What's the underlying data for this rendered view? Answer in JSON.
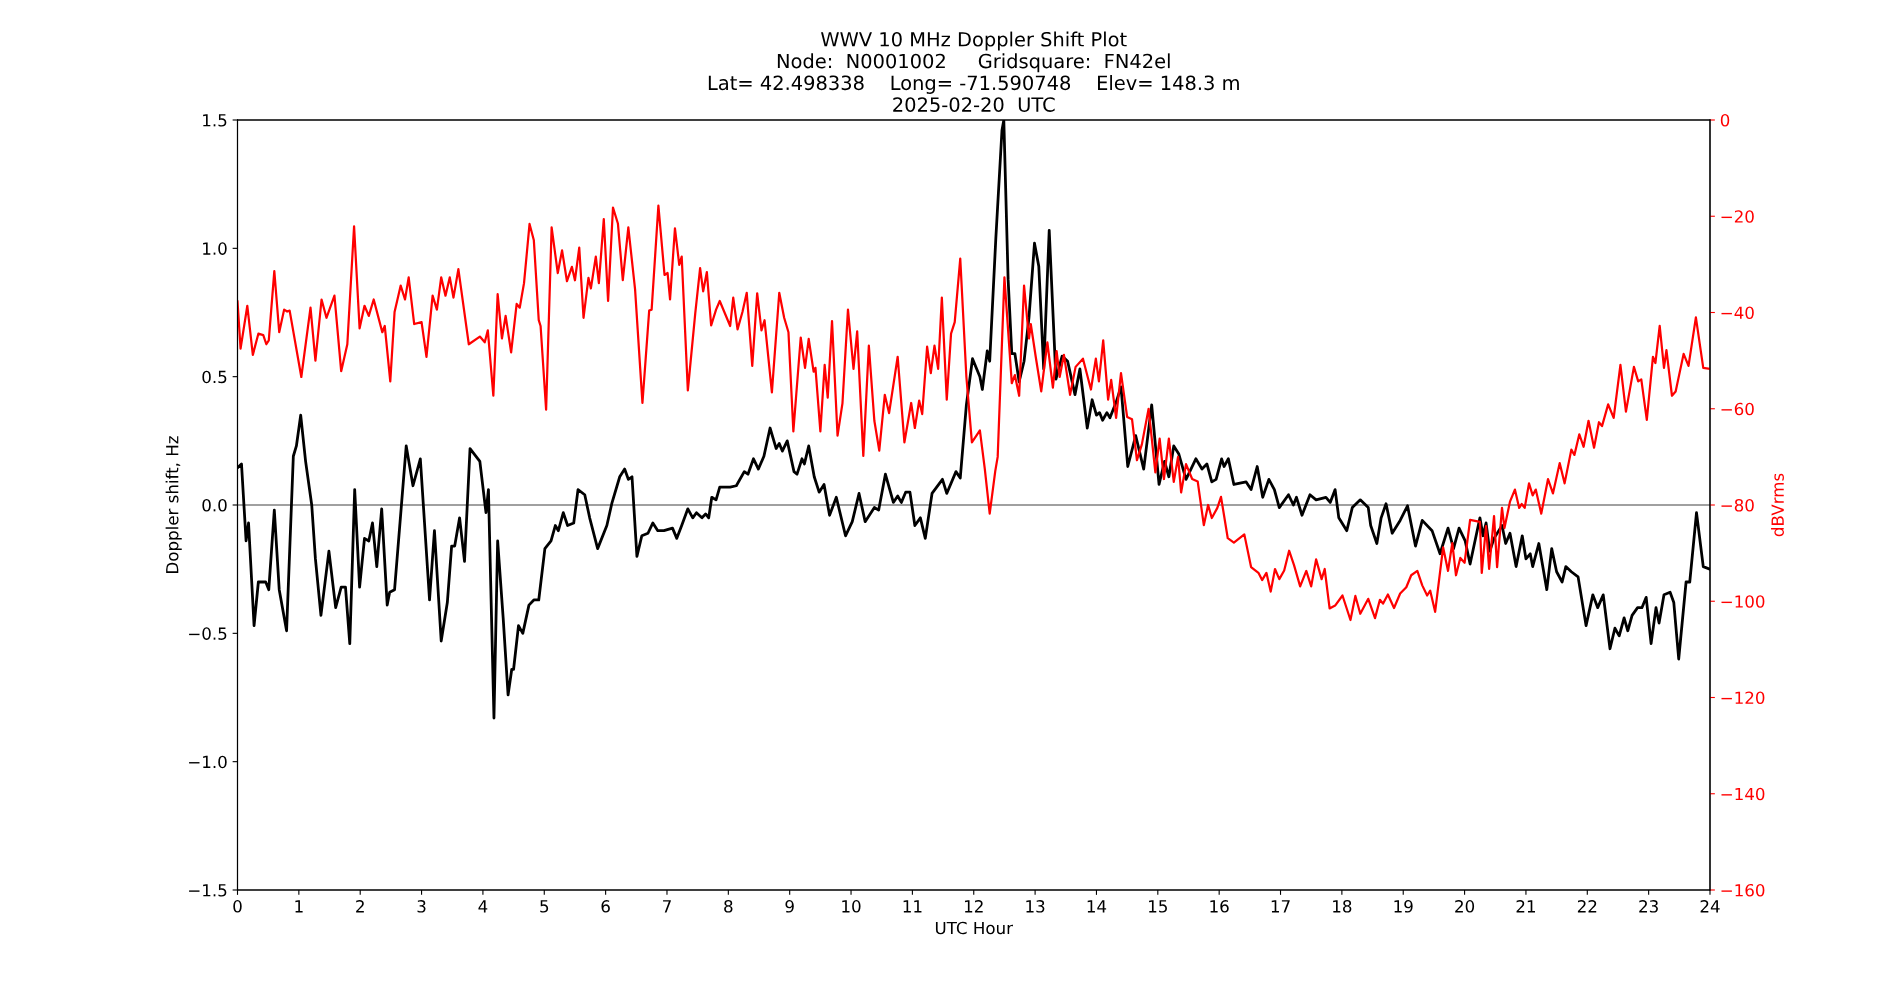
{
  "chart_data": {
    "type": "line",
    "title": "WWV 10 MHz Doppler Shift Plot\nNode:  N0001002     Gridsquare:  FN42el\nLat= 42.498338    Long= -71.590748    Elev= 148.3 m\n2025-02-20  UTC",
    "xlabel": "UTC Hour",
    "ylabel": "Doppler shift, Hz",
    "y2label": "dBVrms",
    "xlim": [
      0,
      24
    ],
    "xticks": [
      0,
      1,
      2,
      3,
      4,
      5,
      6,
      7,
      8,
      9,
      10,
      11,
      12,
      13,
      14,
      15,
      16,
      17,
      18,
      19,
      20,
      21,
      22,
      23,
      24
    ],
    "ylim": [
      -1.5,
      1.5
    ],
    "yticks": [
      {
        "value": -1.5,
        "label": "−1.5"
      },
      {
        "value": -1.0,
        "label": "−1.0"
      },
      {
        "value": -0.5,
        "label": "−0.5"
      },
      {
        "value": 0.0,
        "label": "0.0"
      },
      {
        "value": 0.5,
        "label": "0.5"
      },
      {
        "value": 1.0,
        "label": "1.0"
      },
      {
        "value": 1.5,
        "label": "1.5"
      }
    ],
    "y2lim": [
      -160,
      0
    ],
    "y2ticks": [
      {
        "value": -160,
        "label": "−160"
      },
      {
        "value": -140,
        "label": "−140"
      },
      {
        "value": -120,
        "label": "−120"
      },
      {
        "value": -100,
        "label": "−100"
      },
      {
        "value": -80,
        "label": "−80"
      },
      {
        "value": -60,
        "label": "−60"
      },
      {
        "value": -40,
        "label": "−40"
      },
      {
        "value": -20,
        "label": "−20"
      },
      {
        "value": 0,
        "label": "0"
      }
    ],
    "grid": false,
    "marker": "none",
    "line_style": "solid",
    "ref_lines": [
      {
        "axis": "y",
        "value": 0,
        "color": "#808080"
      }
    ],
    "series": [
      {
        "color": "#000000",
        "axis": "y",
        "x": [
          0,
          0.065,
          0.14,
          0.18,
          0.27,
          0.34,
          0.46,
          0.51,
          0.6,
          0.68,
          0.8,
          0.91,
          0.96,
          1.03,
          1.11,
          1.21,
          1.27,
          1.36,
          1.49,
          1.6,
          1.69,
          1.76,
          1.83,
          1.91,
          1.99,
          2.07,
          2.14,
          2.2,
          2.27,
          2.35,
          2.44,
          2.48,
          2.56,
          2.75,
          2.86,
          2.98,
          3.13,
          3.21,
          3.32,
          3.42,
          3.49,
          3.54,
          3.62,
          3.7,
          3.79,
          3.95,
          4.05,
          4.09,
          4.18,
          4.24,
          4.33,
          4.41,
          4.47,
          4.5,
          4.58,
          4.65,
          4.75,
          4.83,
          4.91,
          5.01,
          5.11,
          5.18,
          5.23,
          5.31,
          5.38,
          5.48,
          5.55,
          5.66,
          5.74,
          5.87,
          6.02,
          6.1,
          6.23,
          6.31,
          6.37,
          6.43,
          6.51,
          6.59,
          6.69,
          6.77,
          6.85,
          6.95,
          7.09,
          7.16,
          7.24,
          7.34,
          7.42,
          7.48,
          7.57,
          7.63,
          7.68,
          7.73,
          7.8,
          7.86,
          8.03,
          8.13,
          8.26,
          8.32,
          8.41,
          8.49,
          8.58,
          8.68,
          8.78,
          8.83,
          8.88,
          8.96,
          9.07,
          9.12,
          9.2,
          9.24,
          9.31,
          9.4,
          9.48,
          9.56,
          9.65,
          9.76,
          9.91,
          10.02,
          10.13,
          10.23,
          10.38,
          10.45,
          10.56,
          10.69,
          10.76,
          10.82,
          10.89,
          10.96,
          11.04,
          11.13,
          11.21,
          11.32,
          11.49,
          11.56,
          11.71,
          11.78,
          11.88,
          11.98,
          12.1,
          12.14,
          12.22,
          12.26,
          12.36,
          12.46,
          12.49,
          12.56,
          12.62,
          12.67,
          12.74,
          12.82,
          12.9,
          12.99,
          13.06,
          13.14,
          13.23,
          13.34,
          13.44,
          13.53,
          13.65,
          13.73,
          13.85,
          13.93,
          14.0,
          14.05,
          14.1,
          14.17,
          14.22,
          14.32,
          14.4,
          14.51,
          14.64,
          14.77,
          14.9,
          15.02,
          15.11,
          15.18,
          15.26,
          15.34,
          15.46,
          15.62,
          15.72,
          15.8,
          15.88,
          15.95,
          16.04,
          16.08,
          16.15,
          16.24,
          16.44,
          16.52,
          16.62,
          16.71,
          16.81,
          16.9,
          16.98,
          17.13,
          17.21,
          17.26,
          17.35,
          17.48,
          17.58,
          17.74,
          17.81,
          17.89,
          17.95,
          18.08,
          18.17,
          18.3,
          18.43,
          18.47,
          18.57,
          18.64,
          18.72,
          18.82,
          18.95,
          19.07,
          19.2,
          19.31,
          19.47,
          19.6,
          19.73,
          19.82,
          19.91,
          20.01,
          20.09,
          20.25,
          20.3,
          20.35,
          20.41,
          20.48,
          20.61,
          20.67,
          20.74,
          20.84,
          20.94,
          21.0,
          21.07,
          21.11,
          21.21,
          21.34,
          21.42,
          21.5,
          21.59,
          21.65,
          21.74,
          21.85,
          21.98,
          22.09,
          22.17,
          22.26,
          22.37,
          22.45,
          22.52,
          22.6,
          22.66,
          22.73,
          22.82,
          22.89,
          22.96,
          23.04,
          23.12,
          23.17,
          23.25,
          23.35,
          23.41,
          23.49,
          23.61,
          23.67,
          23.78,
          23.89,
          24.0
        ],
        "values": [
          0.145,
          0.16,
          -0.14,
          -0.07,
          -0.47,
          -0.3,
          -0.3,
          -0.33,
          -0.02,
          -0.33,
          -0.49,
          0.19,
          0.23,
          0.35,
          0.17,
          0.0,
          -0.21,
          -0.43,
          -0.18,
          -0.4,
          -0.32,
          -0.32,
          -0.54,
          0.06,
          -0.32,
          -0.13,
          -0.14,
          -0.07,
          -0.24,
          -0.015,
          -0.39,
          -0.34,
          -0.33,
          0.23,
          0.075,
          0.18,
          -0.37,
          -0.1,
          -0.53,
          -0.38,
          -0.16,
          -0.16,
          -0.05,
          -0.22,
          0.22,
          0.17,
          -0.03,
          0.06,
          -0.83,
          -0.14,
          -0.44,
          -0.74,
          -0.64,
          -0.64,
          -0.47,
          -0.5,
          -0.39,
          -0.37,
          -0.37,
          -0.17,
          -0.14,
          -0.08,
          -0.1,
          -0.03,
          -0.08,
          -0.07,
          0.06,
          0.04,
          -0.05,
          -0.17,
          -0.08,
          0.005,
          0.11,
          0.14,
          0.1,
          0.11,
          -0.2,
          -0.12,
          -0.11,
          -0.07,
          -0.1,
          -0.1,
          -0.09,
          -0.13,
          -0.08,
          -0.015,
          -0.05,
          -0.03,
          -0.05,
          -0.035,
          -0.05,
          0.03,
          0.02,
          0.07,
          0.07,
          0.075,
          0.13,
          0.12,
          0.18,
          0.14,
          0.19,
          0.3,
          0.22,
          0.24,
          0.21,
          0.25,
          0.13,
          0.12,
          0.18,
          0.16,
          0.23,
          0.11,
          0.05,
          0.08,
          -0.04,
          0.03,
          -0.12,
          -0.065,
          0.045,
          -0.065,
          -0.01,
          -0.02,
          0.12,
          0.01,
          0.035,
          0.01,
          0.05,
          0.05,
          -0.08,
          -0.05,
          -0.13,
          0.045,
          0.1,
          0.045,
          0.13,
          0.105,
          0.39,
          0.57,
          0.5,
          0.45,
          0.6,
          0.56,
          1.04,
          1.46,
          1.5,
          0.88,
          0.59,
          0.59,
          0.48,
          0.56,
          0.73,
          1.02,
          0.93,
          0.53,
          1.07,
          0.49,
          0.58,
          0.56,
          0.43,
          0.53,
          0.3,
          0.41,
          0.35,
          0.36,
          0.33,
          0.36,
          0.34,
          0.4,
          0.46,
          0.15,
          0.27,
          0.14,
          0.39,
          0.08,
          0.17,
          0.11,
          0.23,
          0.2,
          0.1,
          0.18,
          0.14,
          0.16,
          0.09,
          0.1,
          0.18,
          0.15,
          0.18,
          0.08,
          0.09,
          0.06,
          0.15,
          0.03,
          0.1,
          0.06,
          -0.01,
          0.04,
          0.0,
          0.03,
          -0.04,
          0.04,
          0.02,
          0.03,
          0.01,
          0.06,
          -0.05,
          -0.1,
          -0.01,
          0.02,
          -0.01,
          -0.08,
          -0.15,
          -0.05,
          0.005,
          -0.11,
          -0.06,
          -0.003,
          -0.16,
          -0.06,
          -0.1,
          -0.19,
          -0.09,
          -0.17,
          -0.09,
          -0.14,
          -0.23,
          -0.05,
          -0.12,
          -0.07,
          -0.18,
          -0.13,
          -0.08,
          -0.15,
          -0.11,
          -0.24,
          -0.12,
          -0.21,
          -0.19,
          -0.24,
          -0.15,
          -0.33,
          -0.17,
          -0.26,
          -0.3,
          -0.24,
          -0.26,
          -0.28,
          -0.47,
          -0.35,
          -0.4,
          -0.35,
          -0.56,
          -0.48,
          -0.51,
          -0.44,
          -0.49,
          -0.43,
          -0.4,
          -0.4,
          -0.36,
          -0.54,
          -0.4,
          -0.46,
          -0.35,
          -0.34,
          -0.38,
          -0.6,
          -0.3,
          -0.3,
          -0.03,
          -0.24,
          -0.25
        ]
      },
      {
        "color": "#ff0000",
        "axis": "y2",
        "x": [
          0,
          0.05,
          0.16,
          0.25,
          0.34,
          0.42,
          0.47,
          0.51,
          0.6,
          0.68,
          0.76,
          0.81,
          0.85,
          1.04,
          1.19,
          1.27,
          1.37,
          1.45,
          1.58,
          1.69,
          1.79,
          1.9,
          1.99,
          2.07,
          2.14,
          2.22,
          2.29,
          2.36,
          2.4,
          2.49,
          2.56,
          2.66,
          2.73,
          2.79,
          2.88,
          3.0,
          3.08,
          3.18,
          3.25,
          3.32,
          3.39,
          3.46,
          3.52,
          3.6,
          3.77,
          3.95,
          4.03,
          4.08,
          4.17,
          4.24,
          4.31,
          4.37,
          4.46,
          4.55,
          4.6,
          4.67,
          4.76,
          4.83,
          4.91,
          4.94,
          5.03,
          5.12,
          5.22,
          5.29,
          5.37,
          5.45,
          5.5,
          5.57,
          5.64,
          5.72,
          5.76,
          5.84,
          5.89,
          5.97,
          6.04,
          6.12,
          6.2,
          6.28,
          6.37,
          6.48,
          6.6,
          6.71,
          6.75,
          6.86,
          6.96,
          7.01,
          7.05,
          7.13,
          7.2,
          7.24,
          7.34,
          7.46,
          7.54,
          7.59,
          7.65,
          7.72,
          7.8,
          7.86,
          8.03,
          8.08,
          8.15,
          8.23,
          8.3,
          8.39,
          8.47,
          8.54,
          8.59,
          8.71,
          8.83,
          8.91,
          8.98,
          9.06,
          9.18,
          9.25,
          9.31,
          9.39,
          9.42,
          9.5,
          9.57,
          9.62,
          9.69,
          9.78,
          9.86,
          9.95,
          10.04,
          10.1,
          10.2,
          10.29,
          10.38,
          10.46,
          10.55,
          10.62,
          10.76,
          10.87,
          10.98,
          11.04,
          11.11,
          11.16,
          11.24,
          11.3,
          11.36,
          11.42,
          11.48,
          11.56,
          11.63,
          11.69,
          11.78,
          11.88,
          11.97,
          12.1,
          12.18,
          12.26,
          12.35,
          12.39,
          12.5,
          12.62,
          12.67,
          12.74,
          12.82,
          12.9,
          12.93,
          13.01,
          13.1,
          13.2,
          13.29,
          13.35,
          13.4,
          13.47,
          13.57,
          13.66,
          13.78,
          13.91,
          13.99,
          14.04,
          14.11,
          14.19,
          14.24,
          14.32,
          14.4,
          14.5,
          14.58,
          14.66,
          14.74,
          14.85,
          14.96,
          15.03,
          15.1,
          15.18,
          15.26,
          15.33,
          15.38,
          15.46,
          15.56,
          15.65,
          15.75,
          15.82,
          15.88,
          15.97,
          16.03,
          16.14,
          16.24,
          16.41,
          16.52,
          16.64,
          16.7,
          16.77,
          16.84,
          16.91,
          16.98,
          17.06,
          17.14,
          17.22,
          17.32,
          17.42,
          17.5,
          17.58,
          17.67,
          17.72,
          17.8,
          17.89,
          18.01,
          18.14,
          18.22,
          18.3,
          18.43,
          18.54,
          18.62,
          18.67,
          18.75,
          18.85,
          18.95,
          19.05,
          19.13,
          19.23,
          19.31,
          19.39,
          19.44,
          19.52,
          19.65,
          19.73,
          19.8,
          19.86,
          19.93,
          20.0,
          20.09,
          20.25,
          20.28,
          20.35,
          20.4,
          20.48,
          20.53,
          20.61,
          20.65,
          20.74,
          20.82,
          20.89,
          20.93,
          20.98,
          21.05,
          21.11,
          21.16,
          21.25,
          21.36,
          21.44,
          21.55,
          21.63,
          21.74,
          21.79,
          21.87,
          21.94,
          22.02,
          22.11,
          22.19,
          22.24,
          22.34,
          22.43,
          22.54,
          22.63,
          22.76,
          22.83,
          22.88,
          22.97,
          23.07,
          23.11,
          23.18,
          23.25,
          23.29,
          23.38,
          23.44,
          23.57,
          23.65,
          23.77,
          23.89,
          24.0
        ],
        "values": [
          -37.7,
          -47.5,
          -38.6,
          -48.8,
          -44.4,
          -44.7,
          -46.6,
          -45.8,
          -31.4,
          -44.1,
          -39.4,
          -39.8,
          -39.6,
          -53.4,
          -39,
          -50,
          -37.3,
          -41.1,
          -36.5,
          -52.2,
          -46.6,
          -22.1,
          -43.3,
          -38.6,
          -40.7,
          -37.3,
          -40.7,
          -44.1,
          -42.8,
          -54.3,
          -39.9,
          -34.4,
          -37.3,
          -32.7,
          -42.4,
          -42,
          -49.2,
          -36.5,
          -39.4,
          -32.7,
          -36.5,
          -32.7,
          -36.9,
          -31,
          -46.6,
          -45,
          -46.2,
          -43.7,
          -57.3,
          -36.2,
          -45.4,
          -40.7,
          -48.3,
          -38.2,
          -39,
          -33.9,
          -21.6,
          -25,
          -41.6,
          -42.8,
          -60.2,
          -22.3,
          -31.8,
          -27.1,
          -33.5,
          -30.5,
          -33.3,
          -26.5,
          -41.1,
          -32.8,
          -35,
          -28.4,
          -33.9,
          -20.6,
          -37.6,
          -18.2,
          -21.5,
          -33.3,
          -22.3,
          -35.2,
          -58.8,
          -39.6,
          -39.4,
          -17.8,
          -32.2,
          -31.8,
          -37.3,
          -22.5,
          -30.1,
          -28.4,
          -56.2,
          -40.3,
          -30.8,
          -35.6,
          -31.6,
          -42.7,
          -39.4,
          -37.6,
          -42.8,
          -36.9,
          -43.5,
          -39.9,
          -35.9,
          -51.1,
          -36,
          -43.7,
          -41.6,
          -56.6,
          -35.9,
          -41.1,
          -44.1,
          -64.7,
          -45.2,
          -51.5,
          -45.5,
          -52.3,
          -51.5,
          -64.7,
          -50.9,
          -57.7,
          -41.8,
          -65.6,
          -58.9,
          -39.4,
          -51.7,
          -43.9,
          -69.8,
          -46.9,
          -62.5,
          -68.7,
          -57.1,
          -60.9,
          -49.2,
          -67,
          -58.8,
          -64,
          -58.3,
          -61.1,
          -47.1,
          -52.6,
          -46.9,
          -51.7,
          -36.9,
          -58.1,
          -44.4,
          -42,
          -28.8,
          -53.4,
          -67,
          -64.5,
          -72.5,
          -81.8,
          -73,
          -70,
          -32.7,
          -54.7,
          -53,
          -57.3,
          -34.4,
          -45.4,
          -42.4,
          -49.2,
          -56.4,
          -46.2,
          -55.6,
          -48,
          -53.4,
          -48.8,
          -57.1,
          -51.3,
          -49.6,
          -56,
          -49.6,
          -54.3,
          -45.8,
          -58.1,
          -54,
          -61.9,
          -52.6,
          -61.7,
          -62.2,
          -70.7,
          -67.4,
          -60,
          -73.2,
          -66.2,
          -74.6,
          -66.2,
          -75.2,
          -70,
          -77.4,
          -71.5,
          -74.6,
          -75.1,
          -84.2,
          -80,
          -82.7,
          -80.6,
          -78.3,
          -86.9,
          -87.8,
          -86.1,
          -92.9,
          -94.1,
          -95.6,
          -94.1,
          -98,
          -93.3,
          -95.4,
          -93.6,
          -89.5,
          -92.5,
          -96.9,
          -93.7,
          -96.9,
          -91.3,
          -95.4,
          -93.3,
          -101.5,
          -100.9,
          -98.8,
          -103.9,
          -98.9,
          -102.6,
          -99.5,
          -103.5,
          -99.7,
          -100.5,
          -98.6,
          -101.4,
          -98.4,
          -97.1,
          -94.6,
          -93.7,
          -96.7,
          -98.8,
          -97.8,
          -102.2,
          -88.8,
          -93.7,
          -87.9,
          -94.6,
          -91,
          -92,
          -83.1,
          -83.5,
          -94.1,
          -84.4,
          -93.3,
          -82.3,
          -92.9,
          -80.6,
          -84.8,
          -79.3,
          -76.8,
          -80.6,
          -79.8,
          -80.6,
          -75.5,
          -78,
          -76.8,
          -81.8,
          -74.6,
          -77.6,
          -71.3,
          -75.5,
          -68.5,
          -69.6,
          -65.3,
          -67.9,
          -62.5,
          -68.1,
          -62.8,
          -63.6,
          -59.1,
          -61.9,
          -50.9,
          -60.6,
          -51.3,
          -54.3,
          -53.9,
          -62.3,
          -49.2,
          -50.5,
          -42.8,
          -51.5,
          -47.8,
          -57.3,
          -56.4,
          -48.6,
          -51.1,
          -41,
          -51.5,
          -51.7
        ]
      }
    ]
  }
}
